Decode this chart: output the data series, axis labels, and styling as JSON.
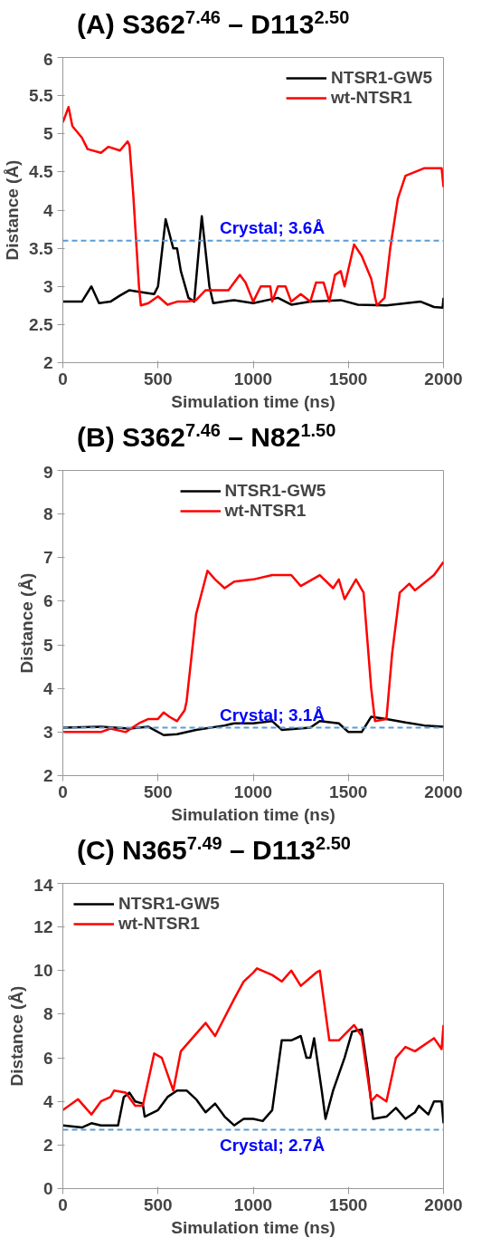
{
  "chart_data": [
    {
      "type": "line",
      "title": "(A) S362$^{7.46}$ – D113$^{2.50}$",
      "xlabel": "Simulation time (ns)",
      "ylabel": "Distance (Å)",
      "xlim": [
        0,
        2000
      ],
      "xticks": [
        0,
        500,
        1000,
        1500,
        2000
      ],
      "ylim": [
        2,
        6
      ],
      "yticks": [
        2,
        2.5,
        3,
        3.5,
        4,
        4.5,
        5,
        5.5,
        6
      ],
      "grid": false,
      "legend": "top right",
      "ref_lines": [
        {
          "axis": "y",
          "value": 3.6,
          "label": "Crystal; 3.6Å",
          "color": "#5b9bd5",
          "line_style": "dashed"
        }
      ],
      "series": [
        {
          "name": "NTSR1-GW5",
          "color": "#000000",
          "x": [
            0,
            100,
            150,
            190,
            250,
            300,
            350,
            400,
            480,
            500,
            540,
            580,
            600,
            620,
            660,
            690,
            730,
            770,
            790,
            900,
            1000,
            1130,
            1200,
            1300,
            1460,
            1550,
            1700,
            1880,
            1950,
            1995,
            2000
          ],
          "values": [
            2.8,
            2.8,
            3.0,
            2.78,
            2.8,
            2.88,
            2.95,
            2.93,
            2.9,
            3.0,
            3.88,
            3.5,
            3.5,
            3.2,
            2.85,
            2.8,
            3.92,
            3.0,
            2.78,
            2.82,
            2.78,
            2.85,
            2.76,
            2.8,
            2.82,
            2.76,
            2.75,
            2.8,
            2.73,
            2.72,
            2.85
          ]
        },
        {
          "name": "wt-NTSR1",
          "color": "#ff0000",
          "x": [
            0,
            30,
            50,
            100,
            130,
            200,
            240,
            300,
            340,
            350,
            370,
            400,
            410,
            450,
            500,
            550,
            600,
            650,
            700,
            750,
            800,
            870,
            930,
            960,
            1000,
            1040,
            1090,
            1100,
            1130,
            1170,
            1200,
            1250,
            1300,
            1330,
            1370,
            1400,
            1430,
            1460,
            1480,
            1530,
            1570,
            1620,
            1650,
            1690,
            1720,
            1760,
            1800,
            1850,
            1900,
            1990,
            2000
          ],
          "values": [
            5.15,
            5.35,
            5.1,
            4.95,
            4.8,
            4.75,
            4.83,
            4.78,
            4.9,
            4.85,
            4.2,
            3.0,
            2.75,
            2.78,
            2.87,
            2.76,
            2.8,
            2.8,
            2.82,
            2.95,
            2.95,
            2.95,
            3.15,
            3.05,
            2.8,
            3.0,
            3.0,
            2.8,
            3.0,
            3.0,
            2.8,
            2.9,
            2.8,
            3.05,
            3.05,
            2.8,
            3.15,
            3.2,
            3.0,
            3.55,
            3.4,
            3.1,
            2.75,
            2.85,
            3.5,
            4.15,
            4.45,
            4.5,
            4.55,
            4.55,
            4.3
          ]
        }
      ]
    },
    {
      "type": "line",
      "title": "(B) S362$^{7.46}$ – N82$^{1.50}$",
      "xlabel": "Simulation time (ns)",
      "ylabel": "Distance (Å)",
      "xlim": [
        0,
        2000
      ],
      "xticks": [
        0,
        500,
        1000,
        1500,
        2000
      ],
      "ylim": [
        2,
        9
      ],
      "yticks": [
        2,
        3,
        4,
        5,
        6,
        7,
        8,
        9
      ],
      "grid": false,
      "legend": "top",
      "ref_lines": [
        {
          "axis": "y",
          "value": 3.1,
          "label": "Crystal; 3.1Å",
          "color": "#5b9bd5",
          "line_style": "dashed"
        }
      ],
      "series": [
        {
          "name": "NTSR1-GW5",
          "color": "#000000",
          "x": [
            0,
            200,
            350,
            450,
            530,
            600,
            700,
            850,
            900,
            1000,
            1100,
            1150,
            1300,
            1350,
            1450,
            1500,
            1570,
            1620,
            1700,
            1800,
            1900,
            2000
          ],
          "values": [
            3.1,
            3.12,
            3.08,
            3.12,
            2.93,
            2.95,
            3.05,
            3.15,
            3.2,
            3.2,
            3.25,
            3.05,
            3.1,
            3.25,
            3.2,
            3.0,
            3.0,
            3.35,
            3.3,
            3.22,
            3.15,
            3.12
          ]
        },
        {
          "name": "wt-NTSR1",
          "color": "#ff0000",
          "x": [
            0,
            100,
            200,
            250,
            330,
            400,
            450,
            500,
            530,
            560,
            600,
            640,
            650,
            700,
            760,
            800,
            850,
            900,
            1000,
            1100,
            1200,
            1250,
            1350,
            1420,
            1450,
            1480,
            1540,
            1580,
            1620,
            1640,
            1700,
            1730,
            1770,
            1820,
            1850,
            1950,
            2000
          ],
          "values": [
            3.0,
            3.0,
            3.0,
            3.08,
            3.0,
            3.2,
            3.3,
            3.3,
            3.45,
            3.35,
            3.25,
            3.5,
            3.7,
            5.7,
            6.7,
            6.5,
            6.3,
            6.45,
            6.5,
            6.6,
            6.6,
            6.35,
            6.6,
            6.3,
            6.5,
            6.05,
            6.5,
            6.2,
            4.0,
            3.25,
            3.3,
            4.8,
            6.2,
            6.4,
            6.25,
            6.6,
            6.9
          ]
        }
      ]
    },
    {
      "type": "line",
      "title": "(C) N365$^{7.49}$ – D113$^{2.50}$",
      "xlabel": "Simulation time (ns)",
      "ylabel": "Distance (Å)",
      "xlim": [
        0,
        2000
      ],
      "xticks": [
        0,
        500,
        1000,
        1500,
        2000
      ],
      "ylim": [
        0,
        14
      ],
      "yticks": [
        0,
        2,
        4,
        6,
        8,
        10,
        12,
        14
      ],
      "grid": false,
      "legend": "top left",
      "ref_lines": [
        {
          "axis": "y",
          "value": 2.7,
          "label": "Crystal; 2.7Å",
          "color": "#5b9bd5",
          "line_style": "dashed"
        }
      ],
      "series": [
        {
          "name": "NTSR1-GW5",
          "color": "#000000",
          "x": [
            0,
            100,
            150,
            200,
            290,
            320,
            350,
            380,
            420,
            430,
            500,
            550,
            600,
            650,
            700,
            750,
            800,
            850,
            900,
            950,
            1000,
            1050,
            1100,
            1150,
            1200,
            1250,
            1280,
            1300,
            1320,
            1360,
            1380,
            1420,
            1480,
            1520,
            1570,
            1600,
            1630,
            1700,
            1750,
            1800,
            1850,
            1870,
            1920,
            1950,
            1990,
            2000
          ],
          "values": [
            2.9,
            2.8,
            3.0,
            2.9,
            2.9,
            4.2,
            4.4,
            4.0,
            3.9,
            3.3,
            3.6,
            4.2,
            4.5,
            4.5,
            4.1,
            3.5,
            3.9,
            3.3,
            2.9,
            3.2,
            3.2,
            3.1,
            3.6,
            6.8,
            6.8,
            7.0,
            6.0,
            6.0,
            6.9,
            4.5,
            3.2,
            4.5,
            6.0,
            7.2,
            7.3,
            5.5,
            3.2,
            3.3,
            3.7,
            3.2,
            3.5,
            3.8,
            3.4,
            4.0,
            4.0,
            3.0
          ]
        },
        {
          "name": "wt-NTSR1",
          "color": "#ff0000",
          "x": [
            0,
            80,
            150,
            200,
            250,
            270,
            330,
            380,
            420,
            480,
            520,
            580,
            620,
            700,
            750,
            800,
            900,
            950,
            1000,
            1020,
            1100,
            1150,
            1200,
            1250,
            1330,
            1350,
            1400,
            1450,
            1530,
            1570,
            1620,
            1650,
            1700,
            1750,
            1800,
            1850,
            1950,
            1990,
            2000
          ],
          "values": [
            3.6,
            4.1,
            3.4,
            4.0,
            4.2,
            4.5,
            4.4,
            3.8,
            3.8,
            6.2,
            6.0,
            4.5,
            6.3,
            7.1,
            7.6,
            7.0,
            8.7,
            9.5,
            9.9,
            10.1,
            9.8,
            9.5,
            10.0,
            9.3,
            9.9,
            10.0,
            6.8,
            6.8,
            7.5,
            7.0,
            4.0,
            4.3,
            4.0,
            6.0,
            6.5,
            6.3,
            6.9,
            6.4,
            7.5
          ]
        }
      ]
    }
  ]
}
